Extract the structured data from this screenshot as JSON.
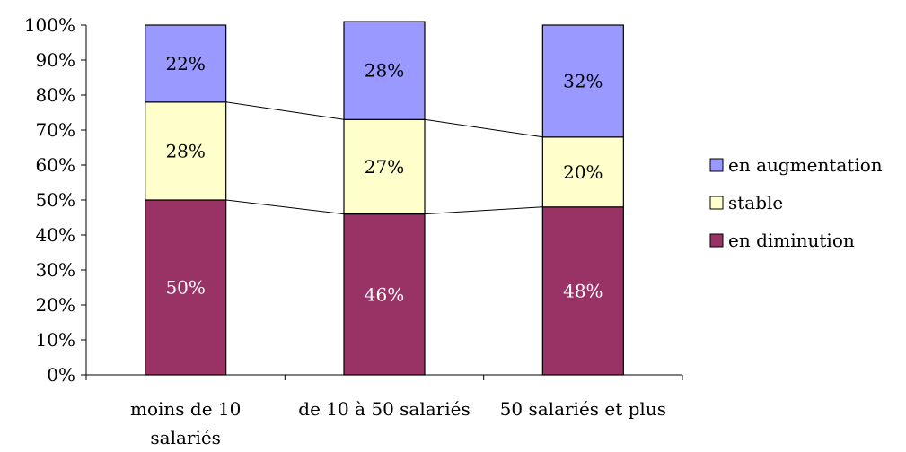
{
  "chart_data": {
    "type": "bar",
    "stacked": true,
    "percent_stacked": true,
    "categories": [
      [
        "moins de 10",
        "salariés"
      ],
      [
        "de 10 à 50 salariés"
      ],
      [
        "50 salariés et plus"
      ]
    ],
    "series": [
      {
        "name": "en diminution",
        "values": [
          50,
          46,
          48
        ],
        "labels": [
          "50%",
          "46%",
          "48%"
        ],
        "color": "#993366",
        "label_color": "#ffffff"
      },
      {
        "name": "stable",
        "values": [
          28,
          27,
          20
        ],
        "labels": [
          "28%",
          "27%",
          "20%"
        ],
        "color": "#ffffcc",
        "label_color": "#000000"
      },
      {
        "name": "en augmentation",
        "values": [
          22,
          28,
          32
        ],
        "labels": [
          "22%",
          "28%",
          "32%"
        ],
        "color": "#9999ff",
        "label_color": "#000000"
      }
    ],
    "yticks": [
      "0%",
      "10%",
      "20%",
      "30%",
      "40%",
      "50%",
      "60%",
      "70%",
      "80%",
      "90%",
      "100%"
    ],
    "ylim": [
      0,
      100
    ],
    "series_lines": true,
    "grid": false,
    "legend": {
      "placement": "right",
      "order": [
        "en augmentation",
        "stable",
        "en diminution"
      ]
    },
    "title": "",
    "xlabel": "",
    "ylabel": ""
  }
}
